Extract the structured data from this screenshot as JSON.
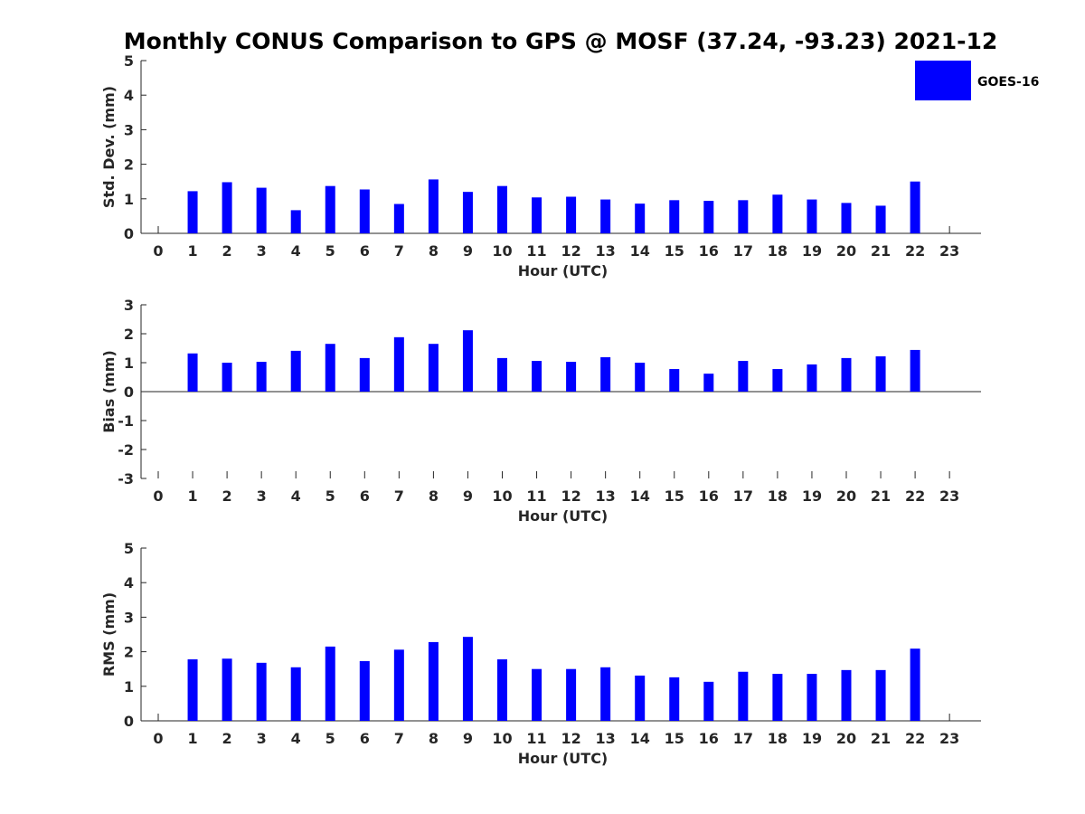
{
  "figure": {
    "title": "Monthly CONUS Comparison to GPS @ MOSF (37.24, -93.23) 2021-12",
    "bar_color": "#0000ff",
    "legend": {
      "label": "GOES-16",
      "color": "#0000ff",
      "placement": "top-right, outside"
    }
  },
  "chart_data": [
    {
      "type": "bar",
      "title": "Monthly CONUS Comparison to GPS @ MOSF (37.24, -93.23) 2021-12",
      "xlabel": "Hour (UTC)",
      "ylabel": "Std. Dev. (mm)",
      "categories": [
        "0",
        "1",
        "2",
        "3",
        "4",
        "5",
        "6",
        "7",
        "8",
        "9",
        "10",
        "11",
        "12",
        "13",
        "14",
        "15",
        "16",
        "17",
        "18",
        "19",
        "20",
        "21",
        "22",
        "23"
      ],
      "series": [
        {
          "name": "GOES-16",
          "values": [
            null,
            1.22,
            1.48,
            1.32,
            0.67,
            1.37,
            1.27,
            0.85,
            1.56,
            1.2,
            1.37,
            1.04,
            1.06,
            0.98,
            0.86,
            0.96,
            0.94,
            0.96,
            1.12,
            0.98,
            0.88,
            0.8,
            1.5,
            null
          ]
        }
      ],
      "ylim": [
        0,
        5
      ],
      "yticks": [
        "0",
        "1",
        "2",
        "3",
        "4",
        "5"
      ],
      "grid": false
    },
    {
      "type": "bar",
      "xlabel": "Hour (UTC)",
      "ylabel": "Bias (mm)",
      "categories": [
        "0",
        "1",
        "2",
        "3",
        "4",
        "5",
        "6",
        "7",
        "8",
        "9",
        "10",
        "11",
        "12",
        "13",
        "14",
        "15",
        "16",
        "17",
        "18",
        "19",
        "20",
        "21",
        "22",
        "23"
      ],
      "series": [
        {
          "name": "GOES-16",
          "values": [
            null,
            1.32,
            1.0,
            1.03,
            1.41,
            1.65,
            1.16,
            1.88,
            1.65,
            2.12,
            1.16,
            1.06,
            1.03,
            1.19,
            1.0,
            0.78,
            0.62,
            1.06,
            0.78,
            0.94,
            1.16,
            1.22,
            1.44,
            null
          ]
        }
      ],
      "ylim": [
        -3,
        3
      ],
      "yticks": [
        "-3",
        "-2",
        "-1",
        "0",
        "1",
        "2",
        "3"
      ],
      "zero_line": true,
      "grid": false
    },
    {
      "type": "bar",
      "xlabel": "Hour (UTC)",
      "ylabel": "RMS (mm)",
      "categories": [
        "0",
        "1",
        "2",
        "3",
        "4",
        "5",
        "6",
        "7",
        "8",
        "9",
        "10",
        "11",
        "12",
        "13",
        "14",
        "15",
        "16",
        "17",
        "18",
        "19",
        "20",
        "21",
        "22",
        "23"
      ],
      "series": [
        {
          "name": "GOES-16",
          "values": [
            null,
            1.78,
            1.8,
            1.68,
            1.55,
            2.15,
            1.73,
            2.06,
            2.28,
            2.43,
            1.78,
            1.5,
            1.5,
            1.55,
            1.31,
            1.26,
            1.13,
            1.42,
            1.36,
            1.36,
            1.47,
            1.47,
            2.09,
            null
          ]
        }
      ],
      "ylim": [
        0,
        5
      ],
      "yticks": [
        "0",
        "1",
        "2",
        "3",
        "4",
        "5"
      ],
      "grid": false
    }
  ]
}
